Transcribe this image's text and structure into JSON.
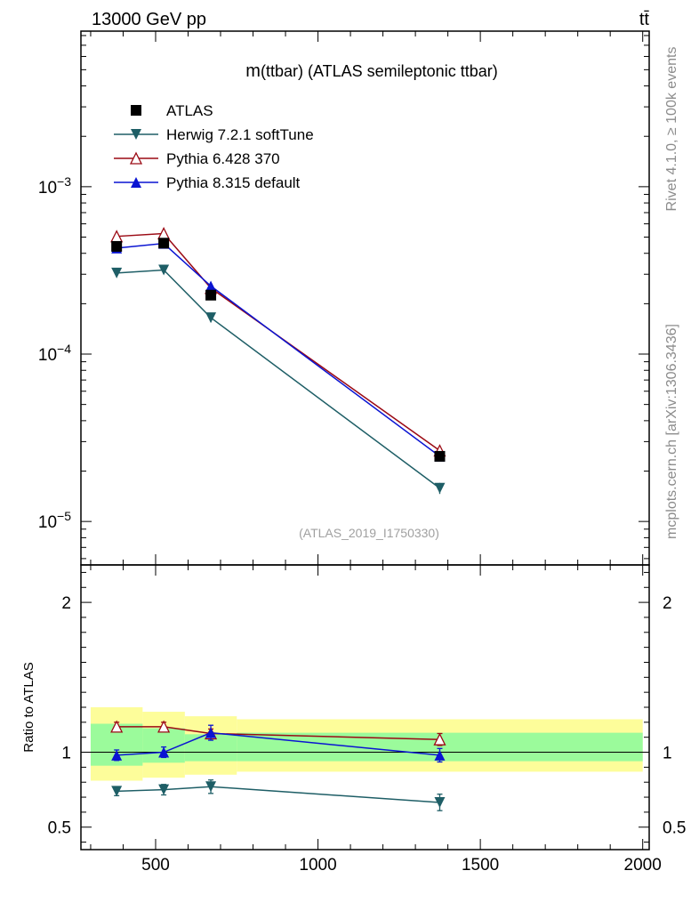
{
  "header": {
    "left": "13000 GeV pp",
    "right": "tt̄"
  },
  "side_labels": {
    "rivet": "Rivet 4.1.0, ≥ 100k events",
    "source": "mcplots.cern.ch [arXiv:1306.3436]"
  },
  "watermark": "(ATLAS_2019_I1750330)",
  "colors": {
    "atlas": "#000000",
    "herwig": "#1e5e66",
    "pythia6": "#9b0a14",
    "pythia8": "#0a14d2",
    "band_outer": "#fdfd9a",
    "band_inner": "#9bfb9b"
  },
  "chart_data": [
    {
      "type": "line",
      "panel": "main",
      "title": "m(ttbar) (ATLAS semileptonic ttbar)",
      "title_main": "m",
      "title_rest": "(ttbar) (ATLAS semileptonic ttbar)",
      "yscale": "log",
      "xlim": [
        270,
        2020
      ],
      "ylim": [
        5.5e-06,
        0.0085
      ],
      "yticks": [
        {
          "value": 0.001,
          "base": "10",
          "exp": "−3"
        },
        {
          "value": 0.0001,
          "base": "10",
          "exp": "−4"
        },
        {
          "value": 1e-05,
          "base": "10",
          "exp": "−5"
        }
      ],
      "legend_position": "top-left",
      "series": [
        {
          "key": "atlas",
          "name": "ATLAS",
          "marker": "square",
          "x": [
            380,
            525,
            670,
            1375
          ],
          "y": [
            0.00044,
            0.00046,
            0.000225,
            2.45e-05
          ]
        },
        {
          "key": "herwig",
          "name": "Herwig 7.2.1 softTune",
          "marker": "triangle-down",
          "x": [
            380,
            525,
            670,
            1375
          ],
          "y": [
            0.000305,
            0.000318,
            0.000165,
            1.58e-05
          ],
          "err": [
            8e-06,
            8e-06,
            1e-05,
            1.2e-06
          ]
        },
        {
          "key": "pythia6",
          "name": "Pythia 6.428 370",
          "marker": "triangle-open",
          "x": [
            380,
            525,
            670,
            1375
          ],
          "y": [
            0.000505,
            0.000525,
            0.000248,
            2.65e-05
          ],
          "err": [
            8e-06,
            8e-06,
            6e-06,
            1e-06
          ]
        },
        {
          "key": "pythia8",
          "name": "Pythia 8.315 default",
          "marker": "triangle-up",
          "x": [
            380,
            525,
            670,
            1375
          ],
          "y": [
            0.00043,
            0.000458,
            0.000255,
            2.45e-05
          ],
          "err": [
            8e-06,
            8e-06,
            6e-06,
            1e-06
          ]
        }
      ]
    },
    {
      "type": "line",
      "panel": "ratio",
      "ylabel": "Ratio to ATLAS",
      "xlim": [
        270,
        2020
      ],
      "ylim": [
        0.35,
        2.25
      ],
      "yticks": [
        {
          "value": 2,
          "label": "2"
        },
        {
          "value": 1,
          "label": "1"
        },
        {
          "value": 0.5,
          "label": "0.5"
        }
      ],
      "xticks": [
        {
          "value": 500,
          "label": "500"
        },
        {
          "value": 1000,
          "label": "1000"
        },
        {
          "value": 1500,
          "label": "1500"
        },
        {
          "value": 2000,
          "label": "2000"
        }
      ],
      "reference_line": 1,
      "bands": [
        {
          "x0": 300,
          "x1": 460,
          "outer": [
            0.81,
            1.3
          ],
          "inner": [
            0.91,
            1.19
          ]
        },
        {
          "x0": 460,
          "x1": 590,
          "outer": [
            0.83,
            1.27
          ],
          "inner": [
            0.93,
            1.16
          ]
        },
        {
          "x0": 590,
          "x1": 750,
          "outer": [
            0.85,
            1.24
          ],
          "inner": [
            0.94,
            1.12
          ]
        },
        {
          "x0": 750,
          "x1": 2000,
          "outer": [
            0.87,
            1.22
          ],
          "inner": [
            0.94,
            1.13
          ]
        }
      ],
      "series": [
        {
          "key": "herwig",
          "marker": "triangle-down",
          "x": [
            380,
            525,
            670,
            1375
          ],
          "y": [
            0.74,
            0.75,
            0.77,
            0.665
          ],
          "err": [
            0.03,
            0.035,
            0.045,
            0.055
          ]
        },
        {
          "key": "pythia6",
          "marker": "triangle-open",
          "x": [
            380,
            525,
            670,
            1375
          ],
          "y": [
            1.17,
            1.17,
            1.125,
            1.085
          ],
          "err": [
            0.03,
            0.03,
            0.03,
            0.04
          ]
        },
        {
          "key": "pythia8",
          "marker": "triangle-up",
          "x": [
            380,
            525,
            670,
            1375
          ],
          "y": [
            0.98,
            1.0,
            1.13,
            0.98
          ],
          "err": [
            0.035,
            0.035,
            0.05,
            0.045
          ]
        }
      ]
    }
  ]
}
